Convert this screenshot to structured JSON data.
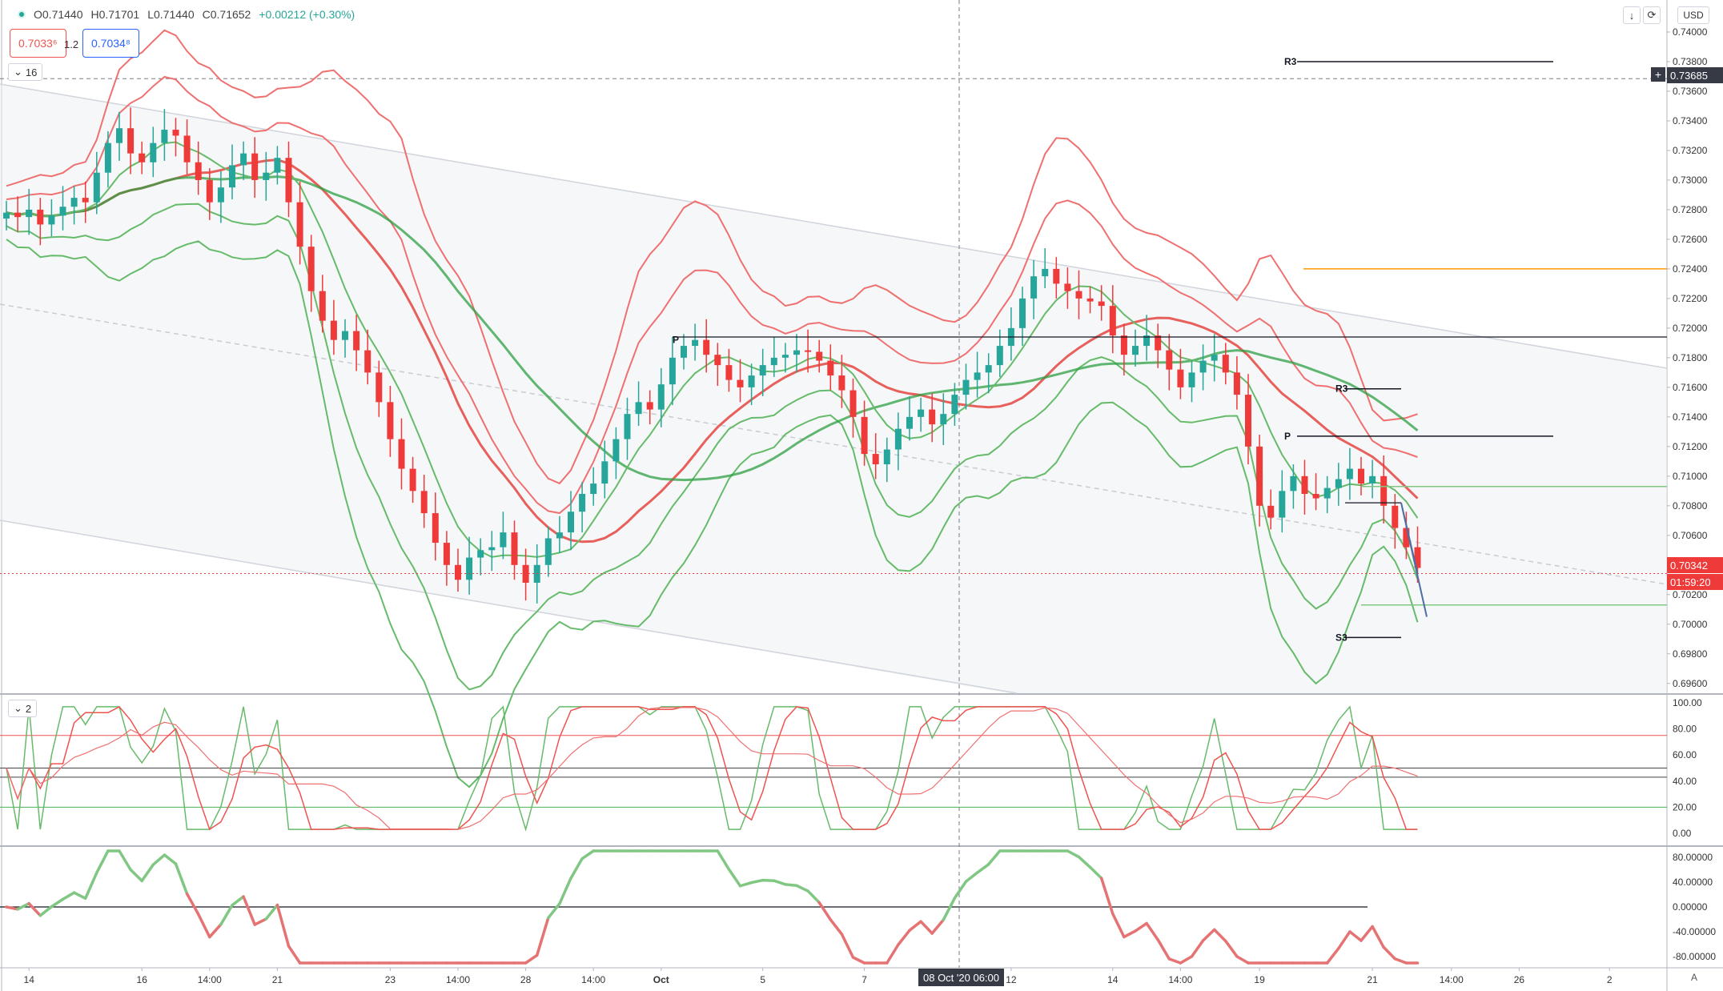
{
  "symbol_info": {
    "open": "O0.71440",
    "high": "H0.71701",
    "low": "L0.71440",
    "close": "C0.71652",
    "change": "+0.00212 (+0.30%)"
  },
  "quote": {
    "sell": "0.7033⁶",
    "spread": "1.2",
    "buy": "0.7034⁸"
  },
  "panes": {
    "main_toggle": "16",
    "indicator_toggle": "2"
  },
  "currency": "USD",
  "crosshair": {
    "price": "0.73685",
    "date": "08 Oct '20  06:00"
  },
  "last_price": {
    "price": "0.70342",
    "countdown": "01:59:20"
  },
  "auto_label": "A",
  "colors": {
    "up": "#26a69a",
    "down": "#ef3a3a",
    "green_line": "#2ea043",
    "red_line": "#e53935",
    "band_red": "#ef7070",
    "band_green": "#66bb6a",
    "orange": "#ff9800",
    "projection": "#4a6fa5"
  },
  "price_axis": [
    "0.74000",
    "0.73800",
    "0.73600",
    "0.73400",
    "0.73200",
    "0.73000",
    "0.72800",
    "0.72600",
    "0.72400",
    "0.72200",
    "0.72000",
    "0.71800",
    "0.71600",
    "0.71400",
    "0.71200",
    "0.71000",
    "0.70800",
    "0.70600",
    "0.70400",
    "0.70200",
    "0.70000",
    "0.69800",
    "0.69600"
  ],
  "osc1_axis": [
    "100.00",
    "80.00",
    "60.00",
    "40.00",
    "20.00",
    "0.00"
  ],
  "osc2_axis": [
    "80.00000",
    "40.00000",
    "0.00000",
    "-40.00000",
    "-80.00000"
  ],
  "time_axis": [
    {
      "label": "14",
      "i": 2
    },
    {
      "label": "16",
      "i": 12
    },
    {
      "label": "14:00",
      "i": 18
    },
    {
      "label": "21",
      "i": 24
    },
    {
      "label": "23",
      "i": 34
    },
    {
      "label": "14:00",
      "i": 40
    },
    {
      "label": "28",
      "i": 46
    },
    {
      "label": "14:00",
      "i": 52
    },
    {
      "label": "Oct",
      "i": 58
    },
    {
      "label": "5",
      "i": 67
    },
    {
      "label": "7",
      "i": 76
    },
    {
      "label": "12",
      "i": 89
    },
    {
      "label": "14",
      "i": 98
    },
    {
      "label": "14:00",
      "i": 104
    },
    {
      "label": "19",
      "i": 111
    },
    {
      "label": "21",
      "i": 121
    },
    {
      "label": "14:00",
      "i": 128
    },
    {
      "label": "26",
      "i": 134
    },
    {
      "label": "2",
      "i": 142
    }
  ],
  "pivot_labels": {
    "r3_top": "R3",
    "p_mid": "P",
    "r3_right": "R3",
    "p_right": "P",
    "s3_right": "S3"
  },
  "chart_data": {
    "type": "candlestick",
    "closes": [
      0.7278,
      0.7275,
      0.728,
      0.727,
      0.7276,
      0.7282,
      0.7288,
      0.7285,
      0.7305,
      0.7325,
      0.7335,
      0.7318,
      0.7312,
      0.7325,
      0.7334,
      0.733,
      0.7312,
      0.73,
      0.7285,
      0.7295,
      0.731,
      0.7318,
      0.73,
      0.7305,
      0.7315,
      0.7285,
      0.7255,
      0.7225,
      0.7205,
      0.7192,
      0.7198,
      0.7185,
      0.717,
      0.715,
      0.7125,
      0.7105,
      0.709,
      0.7075,
      0.7055,
      0.704,
      0.703,
      0.7045,
      0.705,
      0.7052,
      0.7062,
      0.704,
      0.7028,
      0.704,
      0.7058,
      0.7062,
      0.7076,
      0.7088,
      0.7095,
      0.711,
      0.7125,
      0.7142,
      0.715,
      0.7145,
      0.7162,
      0.718,
      0.7188,
      0.7192,
      0.7182,
      0.7175,
      0.7165,
      0.716,
      0.7168,
      0.7175,
      0.718,
      0.7182,
      0.7185,
      0.7184,
      0.7178,
      0.7168,
      0.7158,
      0.714,
      0.7115,
      0.7108,
      0.7118,
      0.7132,
      0.714,
      0.7145,
      0.7135,
      0.7142,
      0.7155,
      0.7165,
      0.717,
      0.7175,
      0.7188,
      0.72,
      0.722,
      0.7235,
      0.724,
      0.723,
      0.7225,
      0.722,
      0.7218,
      0.7215,
      0.7195,
      0.7182,
      0.7188,
      0.7195,
      0.7185,
      0.7172,
      0.716,
      0.717,
      0.7178,
      0.7182,
      0.717,
      0.7155,
      0.712,
      0.708,
      0.7072,
      0.709,
      0.71,
      0.7088,
      0.7085,
      0.7092,
      0.7098,
      0.7105,
      0.7095,
      0.71,
      0.708,
      0.7065,
      0.7052,
      0.7038
    ],
    "last_close": 0.70342,
    "y_range": [
      0.6955,
      0.742
    ],
    "oscillator_1": {
      "range": [
        0,
        100
      ],
      "levels": [
        75,
        50,
        43,
        20
      ]
    },
    "oscillator_2": {
      "range": [
        -90,
        90
      ],
      "zero": 0
    },
    "levels": {
      "r3_top": 0.738,
      "orange": 0.724,
      "black_mid": 0.7194,
      "r3_right": 0.7159,
      "p_right": 0.7127,
      "green_upper": 0.7093,
      "green_lower": 0.7013,
      "s3_right": 0.6991
    }
  }
}
